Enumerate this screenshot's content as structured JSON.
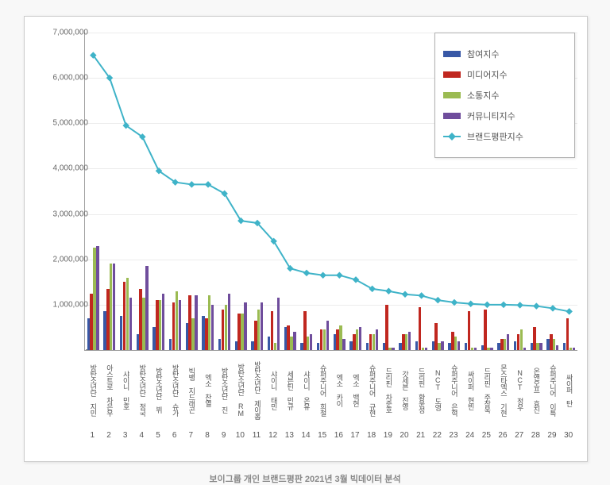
{
  "caption": "보이그룹 개인 브랜드평판 2021년 3월 빅데이터 분석",
  "chart": {
    "type": "grouped-bar-with-line",
    "background_color": "#ffffff",
    "grid_color": "#ececec",
    "y_axis": {
      "min": 0,
      "max": 7000000,
      "ticks": [
        0,
        1000000,
        2000000,
        3000000,
        4000000,
        5000000,
        6000000,
        7000000
      ],
      "tick_labels": [
        "-",
        "1,000,000",
        "2,000,000",
        "3,000,000",
        "4,000,000",
        "5,000,000",
        "6,000,000",
        "7,000,000"
      ],
      "font_size": 10
    },
    "series": [
      {
        "key": "participation",
        "label": "참여지수",
        "color": "#3858a6",
        "type": "bar"
      },
      {
        "key": "media",
        "label": "미디어지수",
        "color": "#c0271f",
        "type": "bar"
      },
      {
        "key": "communication",
        "label": "소통지수",
        "color": "#9bbb52",
        "type": "bar"
      },
      {
        "key": "community",
        "label": "커뮤니티지수",
        "color": "#6f4d9c",
        "type": "bar"
      },
      {
        "key": "brand",
        "label": "브랜드평판지수",
        "color": "#3fb3c8",
        "type": "line"
      }
    ],
    "categories": [
      {
        "rank": 1,
        "name": "방탄소년단 지민",
        "participation": 700000,
        "media": 1250000,
        "communication": 2250000,
        "community": 2300000,
        "brand": 6500000
      },
      {
        "rank": 2,
        "name": "아스트로 차은우",
        "participation": 850000,
        "media": 1350000,
        "communication": 1900000,
        "community": 1900000,
        "brand": 6000000
      },
      {
        "rank": 3,
        "name": "샤이니 민호",
        "participation": 750000,
        "media": 1500000,
        "communication": 1600000,
        "community": 1150000,
        "brand": 4950000
      },
      {
        "rank": 4,
        "name": "방탄소년단 정국",
        "participation": 350000,
        "media": 1350000,
        "communication": 1150000,
        "community": 1850000,
        "brand": 4700000
      },
      {
        "rank": 5,
        "name": "방탄소년단 뷔",
        "participation": 500000,
        "media": 1100000,
        "communication": 1100000,
        "community": 1250000,
        "brand": 3950000
      },
      {
        "rank": 6,
        "name": "방탄소년단 슈가",
        "participation": 250000,
        "media": 1050000,
        "communication": 1300000,
        "community": 1100000,
        "brand": 3700000
      },
      {
        "rank": 7,
        "name": "빅뱅 지드래곤",
        "participation": 600000,
        "media": 1200000,
        "communication": 700000,
        "community": 1200000,
        "brand": 3650000
      },
      {
        "rank": 8,
        "name": "엑소 찬열",
        "participation": 750000,
        "media": 700000,
        "communication": 1200000,
        "community": 1000000,
        "brand": 3650000
      },
      {
        "rank": 9,
        "name": "방탄소년단 진",
        "participation": 250000,
        "media": 900000,
        "communication": 1000000,
        "community": 1250000,
        "brand": 3450000
      },
      {
        "rank": 10,
        "name": "방탄소년단 RM",
        "participation": 200000,
        "media": 800000,
        "communication": 800000,
        "community": 1050000,
        "brand": 2850000
      },
      {
        "rank": 11,
        "name": "방탄소년단 제이홉",
        "participation": 200000,
        "media": 650000,
        "communication": 900000,
        "community": 1050000,
        "brand": 2800000
      },
      {
        "rank": 12,
        "name": "샤이니 태민",
        "participation": 300000,
        "media": 850000,
        "communication": 150000,
        "community": 1150000,
        "brand": 2400000
      },
      {
        "rank": 13,
        "name": "세븐틴 민규",
        "participation": 500000,
        "media": 550000,
        "communication": 300000,
        "community": 400000,
        "brand": 1800000
      },
      {
        "rank": 14,
        "name": "샤이니 온유",
        "participation": 150000,
        "media": 850000,
        "communication": 300000,
        "community": 350000,
        "brand": 1700000
      },
      {
        "rank": 15,
        "name": "슈퍼주니어 희철",
        "participation": 150000,
        "media": 450000,
        "communication": 450000,
        "community": 650000,
        "brand": 1650000
      },
      {
        "rank": 16,
        "name": "엑소 카이",
        "participation": 350000,
        "media": 450000,
        "communication": 550000,
        "community": 250000,
        "brand": 1650000
      },
      {
        "rank": 17,
        "name": "엑소 백현",
        "participation": 200000,
        "media": 350000,
        "communication": 450000,
        "community": 500000,
        "brand": 1550000
      },
      {
        "rank": 18,
        "name": "슈퍼주니어 규현",
        "participation": 150000,
        "media": 350000,
        "communication": 350000,
        "community": 450000,
        "brand": 1350000
      },
      {
        "rank": 19,
        "name": "드리핀 차준호",
        "participation": 150000,
        "media": 1000000,
        "communication": 50000,
        "community": 50000,
        "brand": 1300000
      },
      {
        "rank": 20,
        "name": "갓세븐 진영",
        "participation": 150000,
        "media": 350000,
        "communication": 350000,
        "community": 400000,
        "brand": 1230000
      },
      {
        "rank": 21,
        "name": "드리핀 황윤성",
        "participation": 200000,
        "media": 950000,
        "communication": 50000,
        "community": 50000,
        "brand": 1200000
      },
      {
        "rank": 22,
        "name": "NCT 도영",
        "participation": 200000,
        "media": 600000,
        "communication": 150000,
        "community": 200000,
        "brand": 1100000
      },
      {
        "rank": 23,
        "name": "슈퍼주니어 은혁",
        "participation": 150000,
        "media": 400000,
        "communication": 300000,
        "community": 200000,
        "brand": 1050000
      },
      {
        "rank": 24,
        "name": "싸이퍼 현빈",
        "participation": 150000,
        "media": 850000,
        "communication": 50000,
        "community": 50000,
        "brand": 1020000
      },
      {
        "rank": 25,
        "name": "드리핀 주창욱",
        "participation": 100000,
        "media": 900000,
        "communication": 50000,
        "community": 50000,
        "brand": 1000000
      },
      {
        "rank": 26,
        "name": "몬스타엑스 기현",
        "participation": 150000,
        "media": 250000,
        "communication": 250000,
        "community": 350000,
        "brand": 1000000
      },
      {
        "rank": 27,
        "name": "NCT 정우",
        "participation": 200000,
        "media": 350000,
        "communication": 450000,
        "community": 50000,
        "brand": 990000
      },
      {
        "rank": 28,
        "name": "온앤오프 효진",
        "participation": 150000,
        "media": 500000,
        "communication": 150000,
        "community": 150000,
        "brand": 970000
      },
      {
        "rank": 29,
        "name": "슈퍼주니어 이특",
        "participation": 250000,
        "media": 350000,
        "communication": 250000,
        "community": 100000,
        "brand": 920000
      },
      {
        "rank": 30,
        "name": "싸이퍼 탄",
        "participation": 150000,
        "media": 700000,
        "communication": 50000,
        "community": 50000,
        "brand": 850000
      }
    ]
  }
}
